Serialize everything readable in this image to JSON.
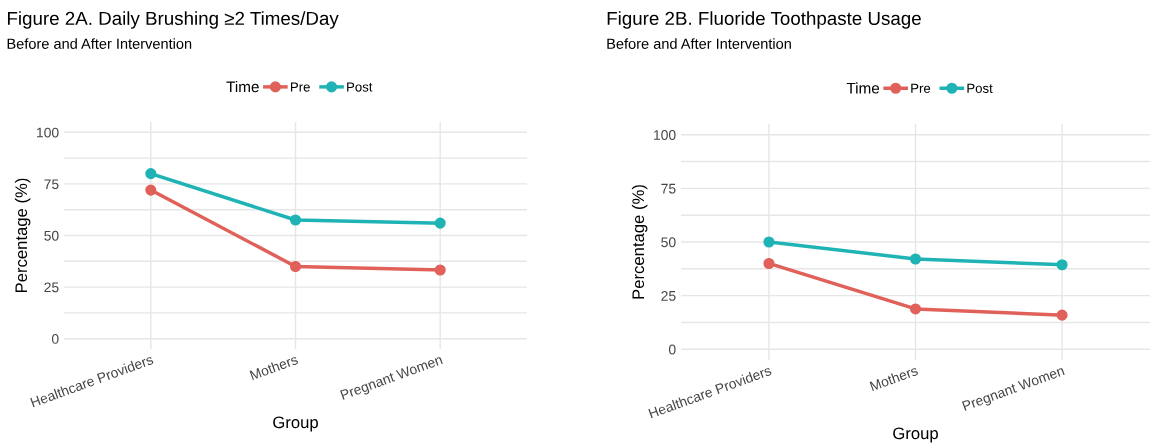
{
  "chart_data": [
    {
      "type": "line",
      "title": "Figure 2A. Daily Brushing ≥2 Times/Day",
      "subtitle": "Before and After Intervention",
      "xlabel": "Group",
      "ylabel": "Percentage (%)",
      "legend_title": "Time",
      "legend": "top",
      "grid": true,
      "marker": "circle",
      "line_style": "solid",
      "categories": [
        "Healthcare Providers",
        "Mothers",
        "Pregnant Women"
      ],
      "series": [
        {
          "name": "Pre",
          "color": "#e0605a",
          "values": [
            72,
            35,
            33.3
          ]
        },
        {
          "name": "Post",
          "color": "#1fb3b5",
          "values": [
            80,
            57.5,
            56
          ]
        }
      ],
      "ylim": [
        -5,
        105
      ],
      "yticks": [
        0,
        {
          "value": 12.5,
          "label": null
        },
        25,
        {
          "value": 37.5,
          "label": null
        },
        50,
        {
          "value": 62.5,
          "label": null
        },
        75,
        {
          "value": 87.5,
          "label": null
        },
        100
      ]
    },
    {
      "type": "line",
      "title": "Figure 2B. Fluoride Toothpaste Usage",
      "subtitle": "Before and After Intervention",
      "xlabel": "Group",
      "ylabel": "Percentage (%)",
      "legend_title": "Time",
      "legend": "top",
      "grid": true,
      "marker": "circle",
      "line_style": "solid",
      "categories": [
        "Healthcare Providers",
        "Mothers",
        "Pregnant Women"
      ],
      "series": [
        {
          "name": "Pre",
          "color": "#e0605a",
          "values": [
            40,
            18.8,
            15.9
          ]
        },
        {
          "name": "Post",
          "color": "#1fb3b5",
          "values": [
            50,
            42.1,
            39.4
          ]
        }
      ],
      "ylim": [
        -5,
        105
      ],
      "yticks": [
        0,
        {
          "value": 12.5,
          "label": null
        },
        25,
        {
          "value": 37.5,
          "label": null
        },
        50,
        {
          "value": 62.5,
          "label": null
        },
        75,
        {
          "value": 87.5,
          "label": null
        },
        100
      ]
    }
  ]
}
